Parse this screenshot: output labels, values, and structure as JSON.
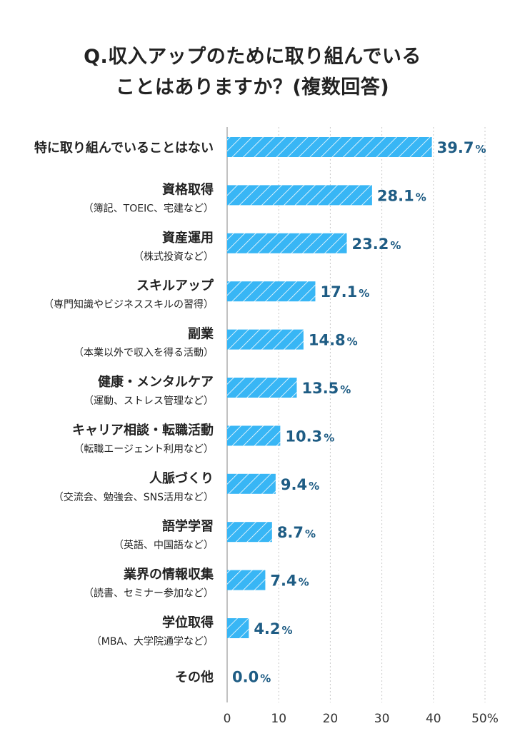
{
  "title_lines": [
    "Q.収入アップのために取り組んでいる",
    "ことはありますか？(複数回答)"
  ],
  "colors": {
    "bar": "#38b6f5",
    "hatch": "#ffffff",
    "value_text": "#1e5c84",
    "label_text": "#222222",
    "grid": "#c8c8c8",
    "axis_text": "#333333"
  },
  "chart_data": {
    "type": "bar",
    "orientation": "horizontal",
    "categories": [
      {
        "label": "特に取り組んでいることはない",
        "sub": ""
      },
      {
        "label": "資格取得",
        "sub": "（簿記、TOEIC、宅建など）"
      },
      {
        "label": "資産運用",
        "sub": "（株式投資など）"
      },
      {
        "label": "スキルアップ",
        "sub": "（専門知識やビジネススキルの習得）"
      },
      {
        "label": "副業",
        "sub": "（本業以外で収入を得る活動）"
      },
      {
        "label": "健康・メンタルケア",
        "sub": "（運動、ストレス管理など）"
      },
      {
        "label": "キャリア相談・転職活動",
        "sub": "（転職エージェント利用など）"
      },
      {
        "label": "人脈づくり",
        "sub": "（交流会、勉強会、SNS活用など）"
      },
      {
        "label": "語学学習",
        "sub": "（英語、中国語など）"
      },
      {
        "label": "業界の情報収集",
        "sub": "（読書、セミナー参加など）"
      },
      {
        "label": "学位取得",
        "sub": "（MBA、大学院通学など）"
      },
      {
        "label": "その他",
        "sub": ""
      }
    ],
    "values": [
      39.7,
      28.1,
      23.2,
      17.1,
      14.8,
      13.5,
      10.3,
      9.4,
      8.7,
      7.4,
      4.2,
      0.0
    ],
    "value_labels": [
      "39.7",
      "28.1",
      "23.2",
      "17.1",
      "14.8",
      "13.5",
      "10.3",
      "9.4",
      "8.7",
      "7.4",
      "4.2",
      "0.0"
    ],
    "value_unit": "%",
    "xlim": [
      0,
      50
    ],
    "x_ticks": [
      0,
      10,
      20,
      30,
      40,
      50
    ],
    "x_tick_labels": [
      "0",
      "10",
      "20",
      "30",
      "40",
      "50%"
    ],
    "grid": true
  }
}
